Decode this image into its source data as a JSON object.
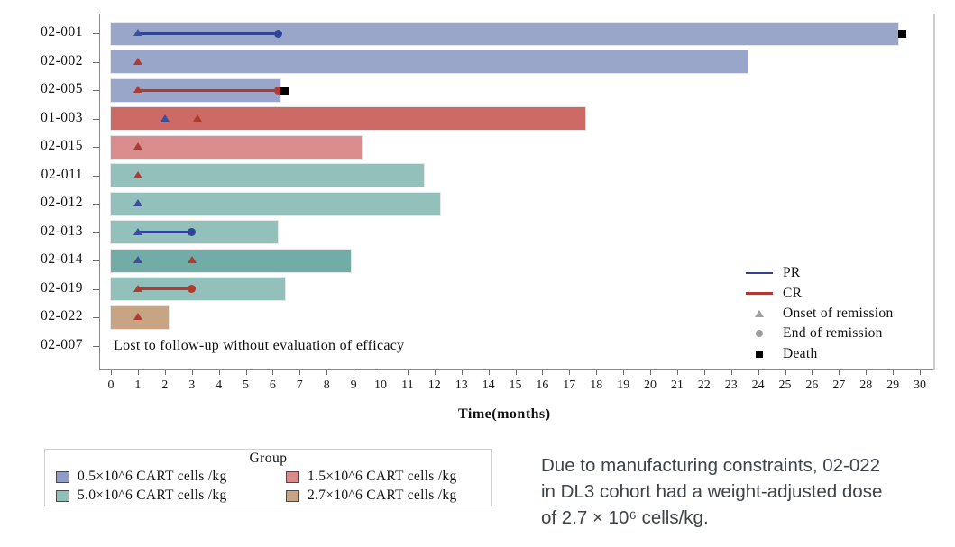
{
  "chart_data": {
    "type": "bar",
    "variant": "swimmer-plot",
    "title": "",
    "xlabel": "Time(months)",
    "ylabel": "",
    "xlim": [
      0,
      30
    ],
    "x_ticks": [
      0,
      1,
      2,
      3,
      4,
      5,
      6,
      7,
      8,
      9,
      10,
      11,
      12,
      13,
      14,
      15,
      16,
      17,
      18,
      19,
      20,
      21,
      22,
      23,
      24,
      25,
      26,
      27,
      28,
      29,
      30
    ],
    "grid": "off",
    "patients": [
      {
        "id": "02-001",
        "group": "0.5x10^6",
        "shade": "blue",
        "bar_end": 29.2,
        "line": {
          "type": "PR",
          "from": 1,
          "to": 6.2
        },
        "onsets": [
          {
            "type": "PR",
            "month": 1
          }
        ],
        "ends": [
          {
            "type": "PR",
            "month": 6.2
          }
        ],
        "death": 29.35
      },
      {
        "id": "02-002",
        "group": "0.5x10^6",
        "shade": "blue",
        "bar_end": 23.6,
        "onsets": [
          {
            "type": "CR",
            "month": 1
          }
        ]
      },
      {
        "id": "02-005",
        "group": "0.5x10^6",
        "shade": "blue",
        "bar_end": 6.3,
        "line": {
          "type": "CR",
          "from": 1,
          "to": 6.2
        },
        "onsets": [
          {
            "type": "CR",
            "month": 1
          }
        ],
        "ends": [
          {
            "type": "CR",
            "month": 6.2
          }
        ],
        "death": 6.45
      },
      {
        "id": "01-003",
        "group": "1.5x10^6",
        "shade": "red_dark",
        "bar_end": 17.6,
        "onsets": [
          {
            "type": "PR",
            "month": 2
          },
          {
            "type": "CR",
            "month": 3.2
          }
        ]
      },
      {
        "id": "02-015",
        "group": "1.5x10^6",
        "shade": "red_light",
        "bar_end": 9.3,
        "onsets": [
          {
            "type": "CR",
            "month": 1
          }
        ]
      },
      {
        "id": "02-011",
        "group": "5.0x10^6",
        "shade": "teal",
        "bar_end": 11.6,
        "onsets": [
          {
            "type": "CR",
            "month": 1
          }
        ]
      },
      {
        "id": "02-012",
        "group": "5.0x10^6",
        "shade": "teal",
        "bar_end": 12.2,
        "onsets": [
          {
            "type": "PR",
            "month": 1
          }
        ]
      },
      {
        "id": "02-013",
        "group": "5.0x10^6",
        "shade": "teal",
        "bar_end": 6.2,
        "line": {
          "type": "PR",
          "from": 1,
          "to": 3
        },
        "onsets": [
          {
            "type": "PR",
            "month": 1
          }
        ],
        "ends": [
          {
            "type": "PR",
            "month": 3
          }
        ]
      },
      {
        "id": "02-014",
        "group": "5.0x10^6",
        "shade": "teal_dark",
        "bar_end": 8.9,
        "onsets": [
          {
            "type": "PR",
            "month": 1
          },
          {
            "type": "CR",
            "month": 3
          }
        ]
      },
      {
        "id": "02-019",
        "group": "5.0x10^6",
        "shade": "teal",
        "bar_end": 6.45,
        "line": {
          "type": "CR",
          "from": 1,
          "to": 3
        },
        "onsets": [
          {
            "type": "CR",
            "month": 1
          }
        ],
        "ends": [
          {
            "type": "CR",
            "month": 3
          }
        ]
      },
      {
        "id": "02-022",
        "group": "2.7x10^6",
        "shade": "tan",
        "bar_end": 2.15,
        "onsets": [
          {
            "type": "CR",
            "month": 1
          }
        ]
      },
      {
        "id": "02-007",
        "group": "",
        "shade": null,
        "bar_end": null,
        "note": "Lost to follow-up without evaluation of efficacy"
      }
    ]
  },
  "colors": {
    "bars": {
      "blue": "#9aa6c9",
      "red_dark": "#ce6a66",
      "red_light": "#db8d8e",
      "teal": "#93c0ba",
      "teal_dark": "#72aca6",
      "tan": "#c6a484"
    },
    "pr_line": "#2f4494",
    "cr_line": "#b23a31",
    "pr_marker": "#3c4f9c",
    "cr_marker": "#ae3b31",
    "legend_gray": "#9e9e9e",
    "death": "#000000"
  },
  "result_legend": {
    "items": [
      {
        "icon": "pr-line",
        "label": "PR"
      },
      {
        "icon": "cr-line",
        "label": "CR"
      },
      {
        "icon": "triangle",
        "label": "Onset of remission"
      },
      {
        "icon": "circle",
        "label": "End of remission"
      },
      {
        "icon": "square",
        "label": "Death"
      }
    ]
  },
  "group_legend": {
    "title": "Group",
    "items": [
      {
        "color": "#8f9cc5",
        "label": "0.5×10^6 CART cells /kg"
      },
      {
        "color": "#d98a8b",
        "label": "1.5×10^6 CART cells /kg"
      },
      {
        "color": "#8fc0b8",
        "label": "5.0×10^6 CART cells /kg"
      },
      {
        "color": "#c6a484",
        "label": "2.7×10^6 CART cells /kg"
      }
    ]
  },
  "caption": {
    "lines": [
      "Due to manufacturing constraints, 02-022",
      "in DL3 cohort had a weight-adjusted dose",
      "of 2.7 × 10⁶ cells/kg."
    ]
  }
}
